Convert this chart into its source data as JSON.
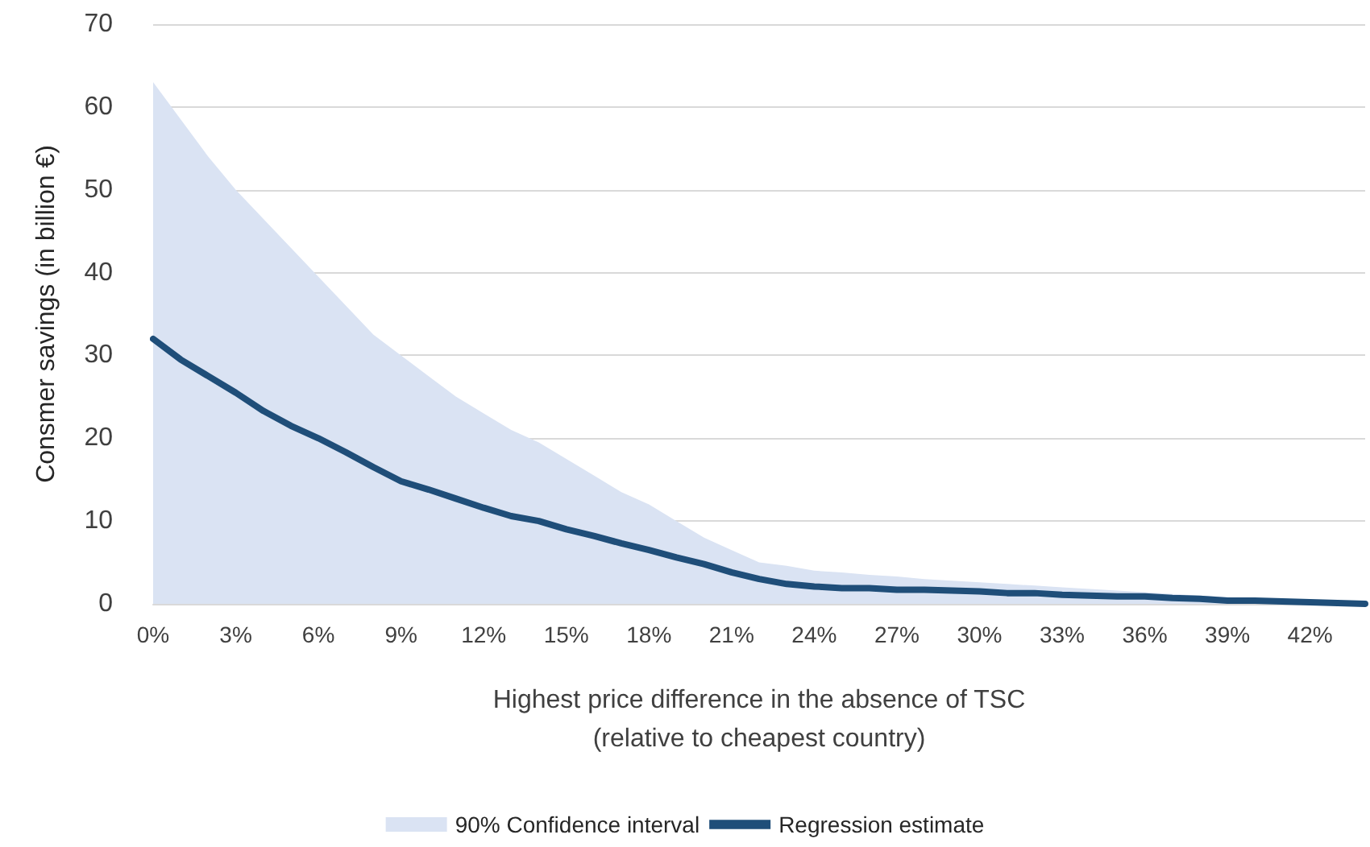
{
  "chart_data": {
    "type": "line",
    "xlabel": "Highest price difference in the absence of TSC\n(relative to cheapest country)",
    "ylabel": "Consmer savings (in billion €)",
    "categories": [
      "0%",
      null,
      null,
      "3%",
      null,
      null,
      "6%",
      null,
      null,
      "9%",
      null,
      null,
      "12%",
      null,
      null,
      "15%",
      null,
      null,
      "18%",
      null,
      null,
      "21%",
      null,
      null,
      "24%",
      null,
      null,
      "27%",
      null,
      null,
      "30%",
      null,
      null,
      "33%",
      null,
      null,
      "36%",
      null,
      null,
      "39%",
      null,
      null,
      "42%",
      null,
      null
    ],
    "series": [
      {
        "name": "90% Confidence interval",
        "type": "area",
        "color": "#dae3f3",
        "values": [
          63,
          58.5,
          54,
          50,
          46.5,
          43,
          39.5,
          36,
          32.5,
          30,
          27.5,
          25,
          23,
          21,
          19.5,
          17.5,
          15.5,
          13.5,
          12,
          10,
          8,
          6.5,
          5,
          4.6,
          4,
          3.8,
          3.5,
          3.3,
          3,
          2.8,
          2.6,
          2.4,
          2.2,
          2,
          1.8,
          1.6,
          1.4,
          1.2,
          1,
          0.8,
          0.6,
          0.5,
          0.4,
          0.2,
          0
        ]
      },
      {
        "name": "Regression estimate",
        "color": "#1f4e79",
        "values": [
          32,
          29.5,
          27.5,
          25.5,
          23.3,
          21.5,
          20,
          18.3,
          16.5,
          14.8,
          13.8,
          12.7,
          11.6,
          10.6,
          10,
          9,
          8.2,
          7.3,
          6.5,
          5.6,
          4.8,
          3.8,
          3,
          2.4,
          2.1,
          1.9,
          1.9,
          1.7,
          1.7,
          1.6,
          1.5,
          1.3,
          1.3,
          1.1,
          1,
          0.9,
          0.9,
          0.7,
          0.6,
          0.4,
          0.4,
          0.3,
          0.2,
          0.1,
          0
        ]
      }
    ],
    "ylim": [
      0,
      70
    ],
    "yticks": [
      0,
      10,
      20,
      30,
      40,
      50,
      60,
      70
    ],
    "grid": "y",
    "legend": "bottom",
    "marker": "none"
  }
}
